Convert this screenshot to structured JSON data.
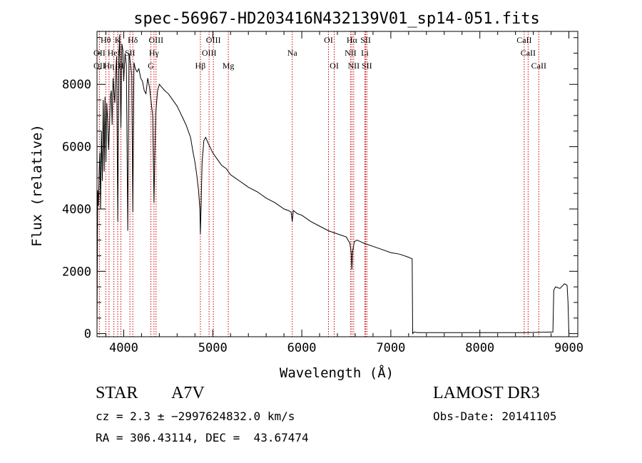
{
  "chart_data": {
    "type": "line",
    "title": "spec-56967-HD203416N432139V01_sp14-051.fits",
    "xlabel": "Wavelength (Å)",
    "ylabel": "Flux (relative)",
    "xlim": [
      3700,
      9100
    ],
    "ylim": [
      -100,
      9700
    ],
    "xticks": [
      4000,
      5000,
      6000,
      7000,
      8000,
      9000
    ],
    "yticks": [
      0,
      2000,
      4000,
      6000,
      8000
    ],
    "x_tick_labels": [
      "4000",
      "5000",
      "6000",
      "7000",
      "8000",
      "9000"
    ],
    "y_tick_labels": [
      "0",
      "2000",
      "4000",
      "6000",
      "8000"
    ],
    "series": [
      {
        "name": "flux",
        "x": [
          3700,
          3708,
          3716,
          3724,
          3732,
          3740,
          3750,
          3760,
          3770,
          3780,
          3790,
          3800,
          3810,
          3820,
          3830,
          3840,
          3850,
          3860,
          3870,
          3880,
          3890,
          3900,
          3910,
          3920,
          3933,
          3945,
          3955,
          3968,
          3980,
          3990,
          4000,
          4015,
          4030,
          4045,
          4060,
          4075,
          4090,
          4102,
          4115,
          4130,
          4150,
          4170,
          4190,
          4210,
          4230,
          4250,
          4270,
          4290,
          4310,
          4325,
          4340,
          4350,
          4360,
          4380,
          4400,
          4430,
          4460,
          4500,
          4550,
          4600,
          4650,
          4700,
          4750,
          4780,
          4800,
          4820,
          4840,
          4855,
          4861,
          4868,
          4880,
          4900,
          4920,
          4950,
          5000,
          5050,
          5100,
          5150,
          5200,
          5250,
          5300,
          5400,
          5500,
          5600,
          5700,
          5800,
          5850,
          5880,
          5893,
          5905,
          5950,
          6000,
          6100,
          6200,
          6300,
          6400,
          6500,
          6540,
          6555,
          6563,
          6572,
          6590,
          6620,
          6700,
          6800,
          6900,
          7000,
          7100,
          7200,
          7240,
          7245,
          7260,
          7300,
          8000,
          8500,
          8820,
          8830,
          8850,
          8900,
          8950,
          8980,
          8990,
          9000
        ],
        "values": [
          100,
          4600,
          4100,
          5200,
          5800,
          4000,
          6500,
          4900,
          7500,
          5200,
          7600,
          5500,
          7400,
          6800,
          5900,
          6600,
          7600,
          7800,
          6700,
          8200,
          7800,
          7400,
          8400,
          8900,
          3600,
          8800,
          9600,
          6600,
          9300,
          9100,
          8100,
          9000,
          8600,
          3300,
          9000,
          8700,
          8300,
          3900,
          8700,
          8500,
          8400,
          8500,
          8200,
          8100,
          7800,
          7700,
          8200,
          7900,
          7400,
          7000,
          4200,
          5800,
          7100,
          7800,
          8000,
          7900,
          7800,
          7700,
          7500,
          7300,
          7000,
          6700,
          6300,
          5800,
          5500,
          5100,
          4600,
          4000,
          3200,
          4000,
          5500,
          6200,
          6300,
          6100,
          5800,
          5600,
          5400,
          5300,
          5100,
          5000,
          4900,
          4700,
          4550,
          4350,
          4200,
          4000,
          3950,
          3900,
          3600,
          3950,
          3850,
          3800,
          3600,
          3450,
          3300,
          3200,
          3100,
          2900,
          2600,
          2050,
          2650,
          2950,
          3000,
          2900,
          2800,
          2700,
          2600,
          2550,
          2450,
          2400,
          0,
          50,
          30,
          30,
          30,
          50,
          1400,
          1500,
          1450,
          1600,
          1550,
          1000,
          0
        ]
      }
    ],
    "lines": [
      {
        "name": "OII",
        "x": 3727
      },
      {
        "name": "Hθ",
        "x": 3798
      },
      {
        "name": "Hη",
        "x": 3835
      },
      {
        "name": "HeI",
        "x": 3889
      },
      {
        "name": "K",
        "x": 3933
      },
      {
        "name": "H",
        "x": 3968
      },
      {
        "name": "SII",
        "x": 4070
      },
      {
        "name": "Hδ",
        "x": 4102
      },
      {
        "name": "G",
        "x": 4305
      },
      {
        "name": "Hγ",
        "x": 4340
      },
      {
        "name": "OIII",
        "x": 4363
      },
      {
        "name": "Hβ",
        "x": 4861
      },
      {
        "name": "OIII",
        "x": 4959
      },
      {
        "name": "OIII",
        "x": 5007
      },
      {
        "name": "Mg",
        "x": 5175
      },
      {
        "name": "Na",
        "x": 5893
      },
      {
        "name": "OI",
        "x": 6300
      },
      {
        "name": "OI",
        "x": 6364
      },
      {
        "name": "NII",
        "x": 6548
      },
      {
        "name": "Hα",
        "x": 6563
      },
      {
        "name": "NII",
        "x": 6583
      },
      {
        "name": "Li",
        "x": 6708
      },
      {
        "name": "SII",
        "x": 6717
      },
      {
        "name": "SII",
        "x": 6731
      },
      {
        "name": "CaII",
        "x": 8498
      },
      {
        "name": "CaII",
        "x": 8542
      },
      {
        "name": "CaII",
        "x": 8662
      }
    ],
    "line_labels": [
      {
        "text": "Hθ",
        "wl": 3798,
        "row": 1
      },
      {
        "text": "K",
        "wl": 3933,
        "row": 1
      },
      {
        "text": "Hδ",
        "wl": 4102,
        "row": 1
      },
      {
        "text": "OIII",
        "wl": 4363,
        "row": 1
      },
      {
        "text": "OIII",
        "wl": 5007,
        "row": 1
      },
      {
        "text": "OI",
        "wl": 6300,
        "row": 1
      },
      {
        "text": "Hα",
        "wl": 6563,
        "row": 1
      },
      {
        "text": "SII",
        "wl": 6717,
        "row": 1
      },
      {
        "text": "CaII",
        "wl": 8498,
        "row": 1
      },
      {
        "text": "OII",
        "wl": 3727,
        "row": 2
      },
      {
        "text": "HeI",
        "wl": 3889,
        "row": 2
      },
      {
        "text": "SII",
        "wl": 4070,
        "row": 2
      },
      {
        "text": "Hγ",
        "wl": 4340,
        "row": 2
      },
      {
        "text": "OIII",
        "wl": 4959,
        "row": 2
      },
      {
        "text": "Na",
        "wl": 5893,
        "row": 2
      },
      {
        "text": "NII",
        "wl": 6548,
        "row": 2
      },
      {
        "text": "Li",
        "wl": 6708,
        "row": 2
      },
      {
        "text": "CaII",
        "wl": 8542,
        "row": 2
      },
      {
        "text": "OII",
        "wl": 3727,
        "row": 3
      },
      {
        "text": "Hη",
        "wl": 3835,
        "row": 3
      },
      {
        "text": "H",
        "wl": 3968,
        "row": 3
      },
      {
        "text": "G",
        "wl": 4305,
        "row": 3
      },
      {
        "text": "Hβ",
        "wl": 4861,
        "row": 3
      },
      {
        "text": "Mg",
        "wl": 5175,
        "row": 3
      },
      {
        "text": "OI",
        "wl": 6364,
        "row": 3
      },
      {
        "text": "NII",
        "wl": 6583,
        "row": 3
      },
      {
        "text": "SII",
        "wl": 6731,
        "row": 3
      },
      {
        "text": "CaII",
        "wl": 8662,
        "row": 3
      }
    ],
    "line_color": "#cc0000",
    "spectrum_color": "#000000"
  },
  "info": {
    "object_class": "STAR",
    "subclass": "A7V",
    "survey": "LAMOST DR3",
    "redshift": "cz = 2.3 ± −2997624832.0 km/s",
    "obs_date": "Obs-Date: 20141105",
    "coords": "RA = 306.43114, DEC =  43.67474"
  }
}
